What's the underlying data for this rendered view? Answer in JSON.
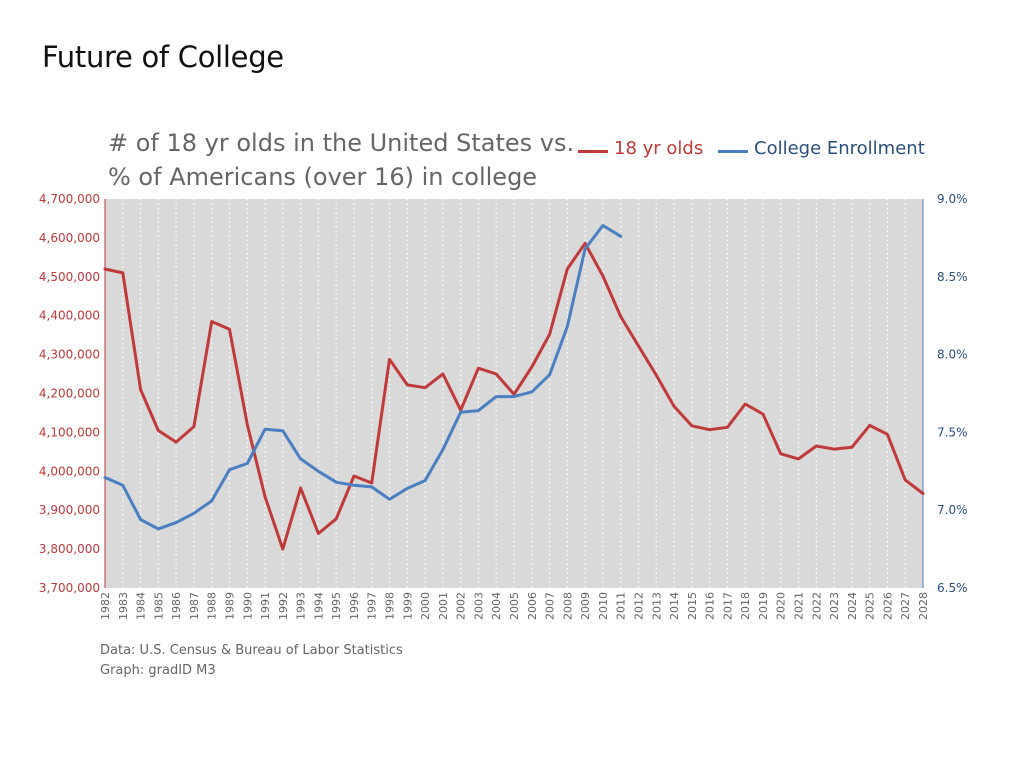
{
  "slide": {
    "title": "Future of College"
  },
  "chart_data": {
    "type": "line",
    "title_line1": "# of 18 yr olds in the United States vs.",
    "title_line2": "% of Americans (over 16) in college",
    "categories": [
      "1982",
      "1983",
      "1984",
      "1985",
      "1986",
      "1987",
      "1988",
      "1989",
      "1990",
      "1991",
      "1992",
      "1993",
      "1994",
      "1995",
      "1996",
      "1997",
      "1998",
      "1999",
      "2000",
      "2001",
      "2002",
      "2003",
      "2004",
      "2005",
      "2006",
      "2007",
      "2008",
      "2009",
      "2010",
      "2011",
      "2012",
      "2013",
      "2014",
      "2015",
      "2016",
      "2017",
      "2018",
      "2019",
      "2020",
      "2021",
      "2022",
      "2023",
      "2024",
      "2025",
      "2026",
      "2027",
      "2028"
    ],
    "series": [
      {
        "name": "18 yr olds",
        "axis": "left",
        "color": "#c0393b",
        "values": [
          4520000,
          4510000,
          4210000,
          4105000,
          4075000,
          4115000,
          4385000,
          4365000,
          4120000,
          3935000,
          3800000,
          3957000,
          3840000,
          3878000,
          3988000,
          3970000,
          4288000,
          4222000,
          4215000,
          4250000,
          4157000,
          4265000,
          4250000,
          4198000,
          4268000,
          4352000,
          4520000,
          4586000,
          4502000,
          4398000,
          4322000,
          4247000,
          4167000,
          4117000,
          4107000,
          4113000,
          4173000,
          4147000,
          4045000,
          4032000,
          4065000,
          4057000,
          4062000,
          4118000,
          4095000,
          3978000,
          3943000
        ]
      },
      {
        "name": "College Enrollment",
        "axis": "right",
        "color": "#4a7fc1",
        "values": [
          7.21,
          7.16,
          6.94,
          6.88,
          6.92,
          6.98,
          7.06,
          7.26,
          7.3,
          7.52,
          7.51,
          7.33,
          7.25,
          7.18,
          7.16,
          7.15,
          7.07,
          7.14,
          7.19,
          7.39,
          7.63,
          7.64,
          7.73,
          7.73,
          7.76,
          7.87,
          8.18,
          8.68,
          8.83,
          8.76,
          null,
          null,
          null,
          null,
          null,
          null,
          null,
          null,
          null,
          null,
          null,
          null,
          null,
          null,
          null,
          null,
          null
        ]
      }
    ],
    "y_left": {
      "min": 3700000,
      "max": 4700000,
      "ticks": [
        3700000,
        3800000,
        3900000,
        4000000,
        4100000,
        4200000,
        4300000,
        4400000,
        4500000,
        4600000,
        4700000
      ],
      "tick_labels": [
        "3,700,000",
        "3,800,000",
        "3,900,000",
        "4,000,000",
        "4,100,000",
        "4,200,000",
        "4,300,000",
        "4,400,000",
        "4,500,000",
        "4,600,000",
        "4,700,000"
      ],
      "color": "#c0393b"
    },
    "y_right": {
      "min": 6.5,
      "max": 9.0,
      "ticks": [
        6.5,
        7.0,
        7.5,
        8.0,
        8.5,
        9.0
      ],
      "tick_labels": [
        "6.5%",
        "7.0%",
        "7.5%",
        "8.0%",
        "8.5%",
        "9.0%"
      ],
      "color": "#2d4f7c"
    },
    "legend": {
      "position": "top-right",
      "items": [
        {
          "label": "18 yr olds",
          "color": "#c0393b",
          "text_color": "#c0393b"
        },
        {
          "label": "College Enrollment",
          "color": "#4a7fc1",
          "text_color": "#2d4f7c"
        }
      ]
    },
    "plot_background": "#d9d9d9",
    "grid": "vertical-dotted-white"
  },
  "source": {
    "line1": "Data: U.S. Census & Bureau of Labor Statistics",
    "line2": "Graph: gradID M3"
  }
}
